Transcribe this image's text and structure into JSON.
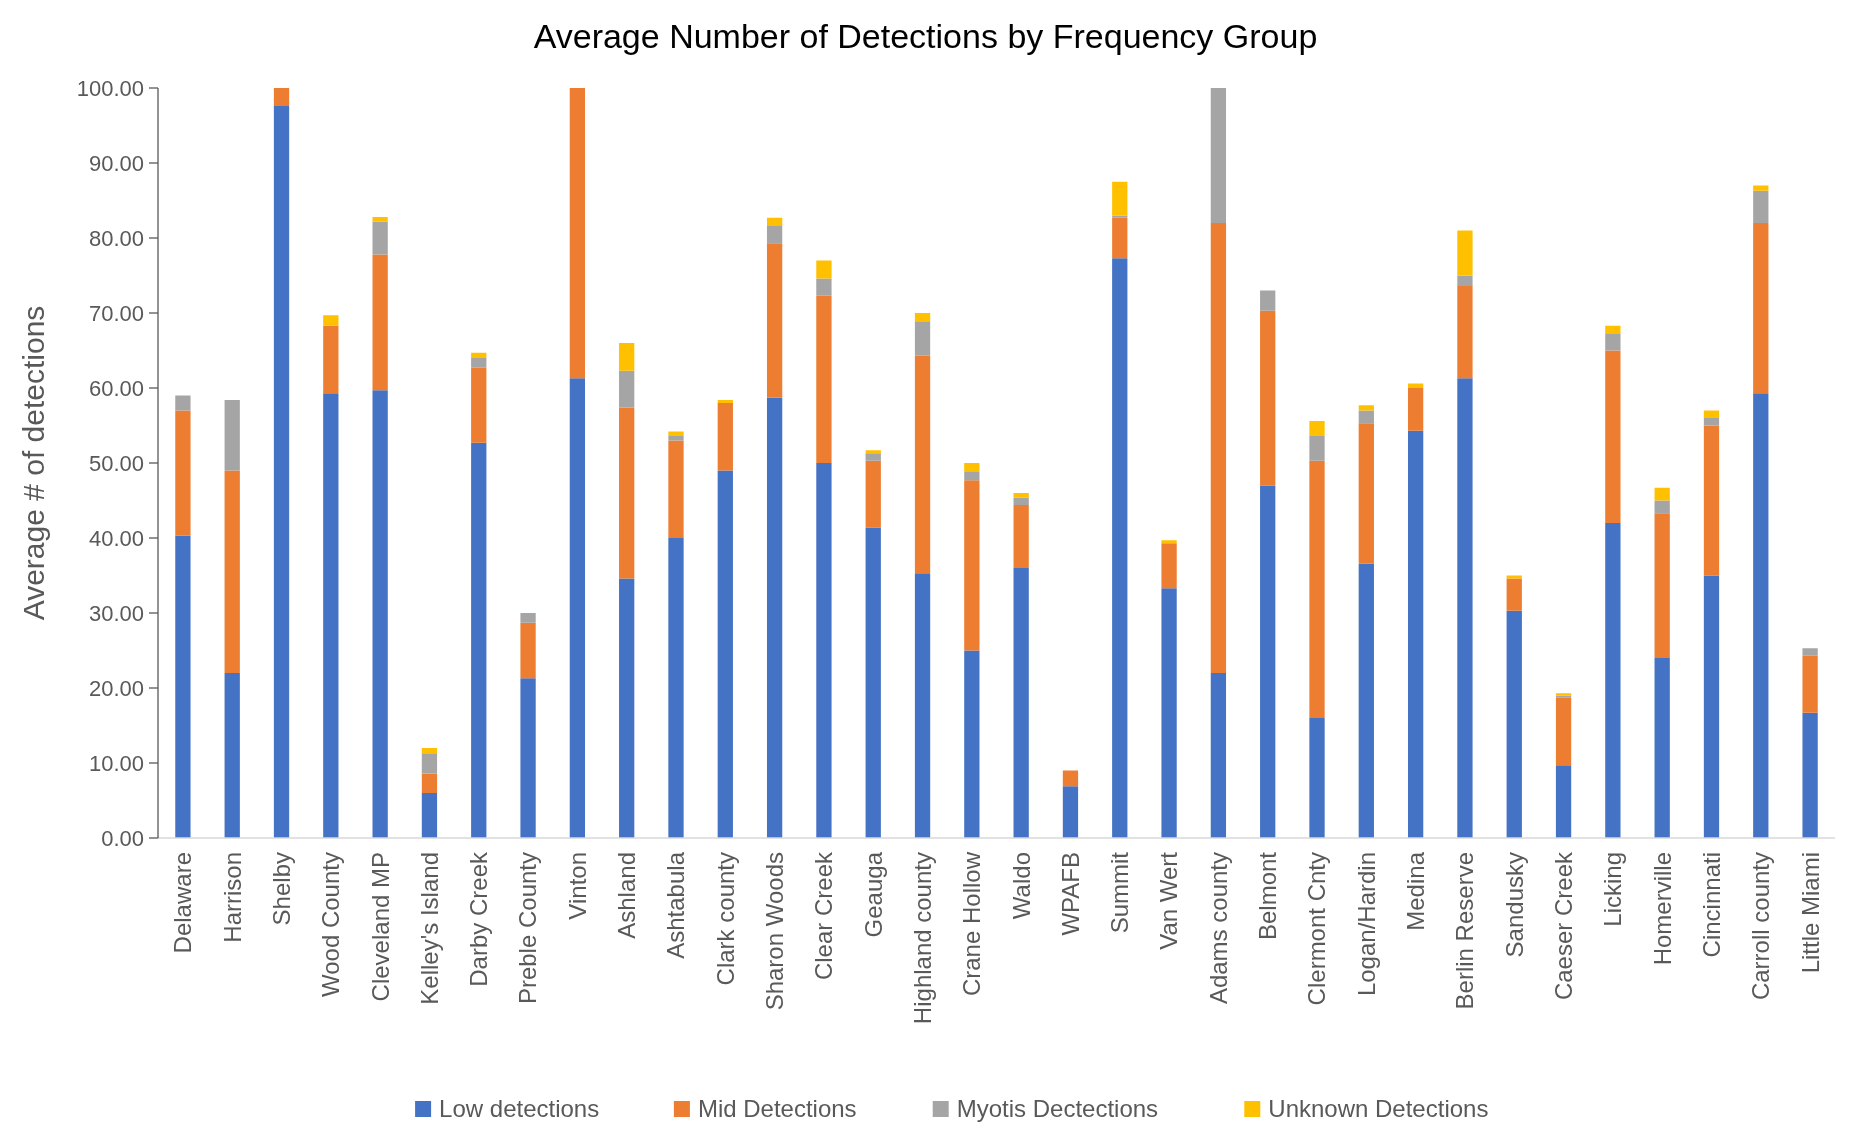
{
  "chart_data": {
    "type": "bar",
    "stacked": true,
    "title": "Average Number of Detections by Frequency Group",
    "ylabel": "Average # of detections",
    "categories": [
      "Delaware",
      "Harrison",
      "Shelby",
      "Wood County",
      "Cleveland MP",
      "Kelley's Island",
      "Darby Creek",
      "Preble County",
      "Vinton",
      "Ashland",
      "Ashtabula",
      "Clark county",
      "Sharon Woods",
      "Clear Creek",
      "Geauga",
      "Highland county",
      "Crane Hollow",
      "Waldo",
      "WPAFB",
      "Summit",
      "Van Wert",
      "Adams county",
      "Belmont",
      "Clermont Cnty",
      "Logan/Hardin",
      "Medina",
      "Berlin Reserve",
      "Sandusky",
      "Caeser Creek",
      "Licking",
      "Homerville",
      "Cincinnati",
      "Carroll county",
      "Little Miami"
    ],
    "series": [
      {
        "name": "Low detections",
        "color": "#4472c4",
        "values": [
          40.3,
          22,
          97.6,
          59.3,
          59.7,
          6.0,
          52.7,
          21.3,
          61.3,
          34.6,
          40.0,
          49.0,
          58.7,
          50.0,
          41.4,
          35.3,
          25.0,
          36.0,
          6.9,
          77.3,
          33.3,
          22.0,
          47.0,
          16.0,
          36.6,
          54.3,
          61.3,
          30.3,
          9.7,
          42.0,
          24.0,
          35.0,
          59.3,
          16.7
        ]
      },
      {
        "name": "Mid Detections",
        "color": "#ed7d31",
        "values": [
          16.7,
          27,
          2.4,
          9.0,
          18.1,
          2.6,
          10.0,
          7.4,
          38.7,
          22.8,
          13.0,
          9.0,
          20.6,
          22.3,
          8.9,
          29.0,
          22.7,
          8.4,
          2.1,
          5.4,
          6.0,
          60.0,
          23.3,
          34.3,
          18.7,
          5.7,
          12.3,
          4.3,
          9.0,
          23.0,
          19.3,
          20.0,
          22.7,
          7.6
        ]
      },
      {
        "name": "Myotis Dectections",
        "color": "#a5a5a5",
        "values": [
          2.0,
          9.4,
          0,
          0,
          4.4,
          2.7,
          1.3,
          1.3,
          0,
          4.9,
          0.6,
          0,
          2.4,
          2.3,
          1.0,
          4.6,
          1.2,
          1.0,
          0,
          0.3,
          0,
          18.0,
          2.7,
          3.3,
          1.7,
          0,
          1.4,
          0,
          0.3,
          2.3,
          1.7,
          1.0,
          4.3,
          1.0
        ]
      },
      {
        "name": "Unknown Detections",
        "color": "#ffc000",
        "values": [
          0,
          0,
          0,
          1.4,
          0.6,
          0.7,
          0.7,
          0,
          0,
          3.7,
          0.6,
          0.4,
          1.0,
          2.4,
          0.4,
          1.1,
          1.1,
          0.6,
          0,
          4.5,
          0.4,
          0,
          0,
          2.0,
          0.7,
          0.6,
          6.0,
          0.4,
          0.3,
          1.0,
          1.7,
          1.0,
          0.7,
          0
        ]
      }
    ],
    "ylim": [
      0,
      100
    ],
    "yticks": [
      {
        "value": 0,
        "label": "0.00"
      },
      {
        "value": 10,
        "label": "10.00"
      },
      {
        "value": 20,
        "label": "20.00"
      },
      {
        "value": 30,
        "label": "30.00"
      },
      {
        "value": 40,
        "label": "40.00"
      },
      {
        "value": 50,
        "label": "50.00"
      },
      {
        "value": 60,
        "label": "60.00"
      },
      {
        "value": 70,
        "label": "70.00"
      },
      {
        "value": 80,
        "label": "80.00"
      },
      {
        "value": 90,
        "label": "90.00"
      },
      {
        "value": 100,
        "label": "100.00"
      }
    ],
    "legend": "bottom"
  }
}
